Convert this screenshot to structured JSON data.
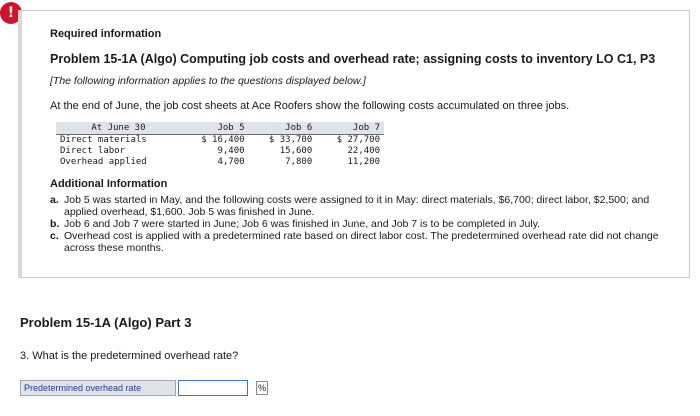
{
  "alert_glyph": "!",
  "info": {
    "heading": "Required information",
    "problem_title": "Problem 15-1A (Algo) Computing job costs and overhead rate; assigning costs to inventory LO C1, P3",
    "note": "[The following information applies to the questions displayed below.]",
    "intro": "At the end of June, the job cost sheets at Ace Roofers show the following costs accumulated on three jobs.",
    "table": {
      "headers": [
        "At June 30",
        "Job 5",
        "Job 6",
        "Job 7"
      ],
      "rows": [
        [
          "Direct materials",
          "$ 16,400",
          "$ 33,700",
          "$ 27,700"
        ],
        [
          "Direct labor",
          "9,400",
          "15,600",
          "22,400"
        ],
        [
          "Overhead applied",
          "4,700",
          "7,800",
          "11,200"
        ]
      ]
    },
    "additional_heading": "Additional Information",
    "additional_items": [
      {
        "marker": "a.",
        "text": "Job 5 was started in May, and the following costs were assigned to it in May: direct materials, $6,700; direct labor, $2,500; and applied overhead, $1,600. Job 5 was finished in June."
      },
      {
        "marker": "b.",
        "text": "Job 6 and Job 7 were started in June; Job 6 was finished in June, and Job 7 is to be completed in July."
      },
      {
        "marker": "c.",
        "text": "Overhead cost is applied with a predetermined rate based on direct labor cost. The predetermined overhead rate did not change across these months."
      }
    ]
  },
  "part": {
    "title": "Problem 15-1A (Algo) Part 3",
    "question": "3. What is the predetermined overhead rate?",
    "answer_label": "Predetermined overhead rate",
    "answer_value": "",
    "unit": "%"
  }
}
